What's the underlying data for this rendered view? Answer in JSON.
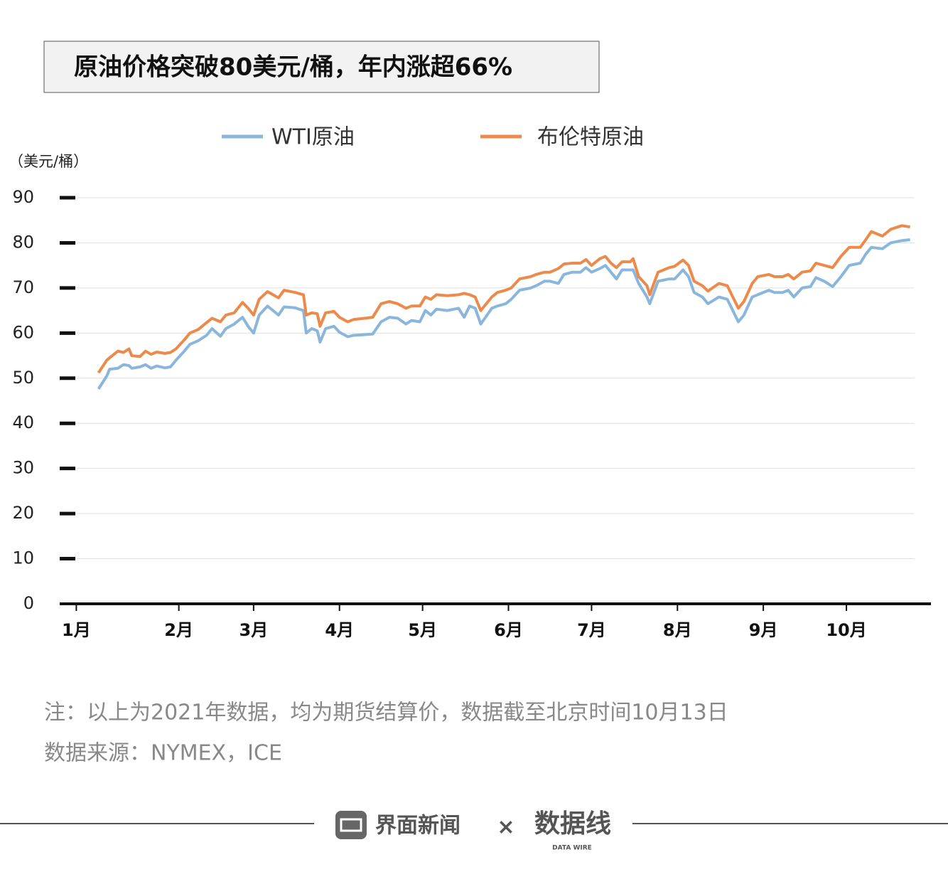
{
  "chart_data": {
    "type": "line",
    "title": "原油价格突破80美元/桶，年内涨超66%",
    "y_label": "（美元/桶）",
    "note": "注：以上为2021年数据，均为期货结算价，数据截至北京时间10月13日",
    "source": "数据来源：NYMEX，ICE",
    "x": [
      8,
      11,
      12,
      15,
      17,
      19,
      20,
      23,
      25,
      27,
      29,
      32,
      34,
      36,
      39,
      41,
      44,
      47,
      49,
      52,
      54,
      57,
      60,
      62,
      64,
      66,
      69,
      71,
      73,
      75,
      79,
      82,
      83,
      85,
      87,
      88,
      90,
      93,
      95,
      98,
      100,
      103,
      107,
      110,
      113,
      116,
      119,
      121,
      124,
      126,
      128,
      130,
      134,
      138,
      140,
      142,
      144,
      146,
      150,
      152,
      155,
      157,
      160,
      164,
      166,
      169,
      171,
      174,
      176,
      179,
      182,
      184,
      186,
      189,
      191,
      193,
      195,
      197,
      200,
      201,
      203,
      206,
      207,
      210,
      214,
      216,
      219,
      221,
      223,
      226,
      228,
      232,
      235,
      237,
      239,
      241,
      244,
      246,
      250,
      252,
      255,
      257,
      259,
      262,
      265,
      267,
      270,
      273,
      276,
      279,
      283,
      285,
      287,
      291,
      294,
      298,
      301
    ],
    "series": [
      {
        "name": "WTI原油",
        "color": "#8ab6dc",
        "values": [
          47.6,
          50.5,
          52,
          52.2,
          53,
          52.8,
          52.2,
          52.5,
          53,
          52.2,
          52.7,
          52.3,
          52.5,
          54,
          56,
          57.5,
          58.3,
          59.5,
          61,
          59.3,
          61,
          62,
          63.5,
          61.5,
          60,
          64,
          66,
          65,
          64,
          65.8,
          65.6,
          65,
          60,
          61,
          60.5,
          58,
          61,
          61.5,
          60.2,
          59.2,
          59.5,
          59.6,
          59.8,
          62.5,
          63.5,
          63.3,
          62,
          62.8,
          62.5,
          65,
          64,
          65.3,
          65,
          65.5,
          63.5,
          66,
          65.5,
          62,
          65.5,
          66,
          66.5,
          67.5,
          69.5,
          70,
          70.5,
          71.5,
          71.5,
          71,
          73,
          73.5,
          73.5,
          74.5,
          73.5,
          74.3,
          75,
          73.5,
          72,
          74,
          74,
          74,
          71,
          68,
          66.5,
          71.5,
          72,
          72,
          74,
          72.5,
          69,
          68,
          66.5,
          68,
          67.5,
          65,
          62.5,
          64,
          68,
          68.5,
          69.5,
          69,
          69,
          69.5,
          68,
          70,
          70.3,
          72.3,
          71.5,
          70.3,
          72.5,
          75,
          75.5,
          77.5,
          79,
          78.7,
          80,
          80.5,
          80.7
        ]
      },
      {
        "name": "布伦特原油",
        "color": "#ec8a4c",
        "values": [
          51.2,
          54,
          54.5,
          56,
          55.7,
          56.5,
          55,
          54.8,
          56,
          55.3,
          55.8,
          55.5,
          55.7,
          56.5,
          58.5,
          60,
          60.8,
          62.3,
          63.3,
          62.5,
          64,
          64.5,
          66.8,
          65.5,
          64,
          67.5,
          69.2,
          68.5,
          67.8,
          69.5,
          69,
          68.5,
          64,
          64.5,
          64.3,
          61.5,
          64.5,
          64.8,
          63.5,
          62.5,
          63,
          63.2,
          63.5,
          66.5,
          67,
          66.5,
          65.5,
          66,
          66,
          68,
          67.5,
          68.5,
          68.3,
          68.5,
          68.8,
          68.5,
          68,
          65,
          68,
          69,
          69.5,
          70,
          72,
          72.5,
          73,
          73.5,
          73.5,
          74.3,
          75.3,
          75.5,
          75.5,
          76.3,
          75,
          76.5,
          77,
          75.5,
          74.5,
          75.8,
          75.8,
          76.5,
          72.5,
          70.5,
          68.5,
          73.5,
          74.5,
          74.8,
          76.2,
          75,
          71.5,
          70.5,
          69.3,
          71,
          70.5,
          68,
          65.5,
          67,
          71,
          72.5,
          73,
          72.5,
          72.5,
          73,
          72,
          73.5,
          73.8,
          75.5,
          75,
          74.5,
          77,
          79,
          79,
          80.7,
          82.5,
          81.5,
          83,
          83.8,
          83.5
        ]
      }
    ],
    "xlim": [
      -6,
      308
    ],
    "xticks": [
      {
        "value": 0,
        "label": "1月"
      },
      {
        "value": 37,
        "label": "2月"
      },
      {
        "value": 64,
        "label": "3月"
      },
      {
        "value": 95,
        "label": "4月"
      },
      {
        "value": 125,
        "label": "5月"
      },
      {
        "value": 156,
        "label": "6月"
      },
      {
        "value": 186,
        "label": "7月"
      },
      {
        "value": 217,
        "label": "8月"
      },
      {
        "value": 248,
        "label": "9月"
      },
      {
        "value": 278,
        "label": "10月"
      }
    ],
    "ylim": [
      0,
      90
    ],
    "yticks": [
      0,
      10,
      20,
      30,
      40,
      50,
      60,
      70,
      80,
      90
    ],
    "grid": true
  },
  "footer": {
    "brand": "界面新闻",
    "separator": "×",
    "partner": "数据线",
    "partner_tagline": "DATA WIRE"
  }
}
